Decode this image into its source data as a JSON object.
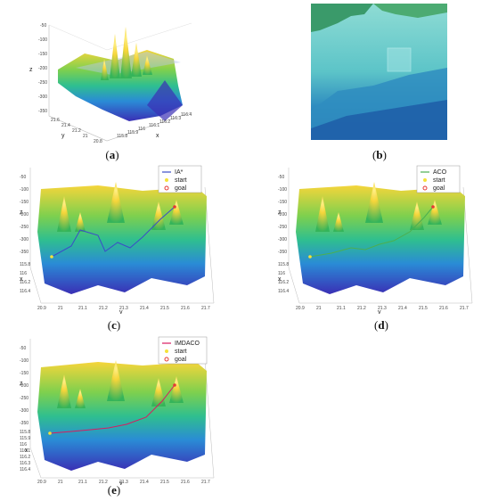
{
  "panels": [
    {
      "id": "a",
      "caption": "a",
      "type": "surface3d",
      "z_ticks": [
        "-50",
        "-100",
        "-150",
        "-200",
        "-250",
        "-300",
        "-350"
      ],
      "y_ticks": [
        "21.6",
        "21.4",
        "21.2",
        "21",
        "20.8"
      ],
      "x_ticks": [
        "116.4",
        "116.3",
        "116.2",
        "116.1",
        "116",
        "115.9",
        "115.8"
      ],
      "x_label": "x",
      "y_label": "y",
      "z_label": "z"
    },
    {
      "id": "b",
      "caption": "b",
      "type": "map"
    },
    {
      "id": "c",
      "caption": "c",
      "type": "path3d",
      "legend": {
        "method": "IA*",
        "start": "start",
        "goal": "goal"
      },
      "path_color": "#3b4cc8",
      "z_ticks": [
        "-50",
        "-100",
        "-150",
        "-200",
        "-250",
        "-300",
        "-350"
      ],
      "x_ticks": [
        "115.8",
        "116",
        "116.2",
        "116.4"
      ],
      "y_ticks": [
        "20.9",
        "21",
        "21.1",
        "21.2",
        "21.3",
        "21.4",
        "21.5",
        "21.6",
        "21.7"
      ],
      "x_label": "x",
      "y_label": "y",
      "z_label": "z"
    },
    {
      "id": "d",
      "caption": "d",
      "type": "path3d",
      "legend": {
        "method": "ACO",
        "start": "start",
        "goal": "goal"
      },
      "path_color": "#4caf50",
      "z_ticks": [
        "-50",
        "-100",
        "-150",
        "-200",
        "-250",
        "-300",
        "-350"
      ],
      "x_ticks": [
        "115.8",
        "116",
        "116.2",
        "116.4"
      ],
      "y_ticks": [
        "20.9",
        "21",
        "21.1",
        "21.2",
        "21.3",
        "21.4",
        "21.5",
        "21.6",
        "21.7"
      ],
      "x_label": "x",
      "y_label": "y",
      "z_label": "z"
    },
    {
      "id": "e",
      "caption": "e",
      "type": "path3d",
      "legend": {
        "method": "IMDACO",
        "start": "start",
        "goal": "goal"
      },
      "path_color": "#d81b60",
      "z_ticks": [
        "-50",
        "-100",
        "-150",
        "-200",
        "-250",
        "-300",
        "-350"
      ],
      "x_ticks": [
        "115.8",
        "115.9",
        "116",
        "116.1",
        "116.2",
        "116.3",
        "116.4"
      ],
      "y_ticks": [
        "20.9",
        "21",
        "21.1",
        "21.2",
        "21.3",
        "21.4",
        "21.5",
        "21.6",
        "21.7"
      ],
      "x_label": "x",
      "y_label": "y",
      "z_label": "z"
    }
  ],
  "colors": {
    "peak": "#f5d53a",
    "mid": "#3fc46a",
    "low": "#2a8bd6",
    "deep": "#3a2fb5",
    "start_marker": "#f5e23a",
    "goal_marker": "#e53935"
  }
}
